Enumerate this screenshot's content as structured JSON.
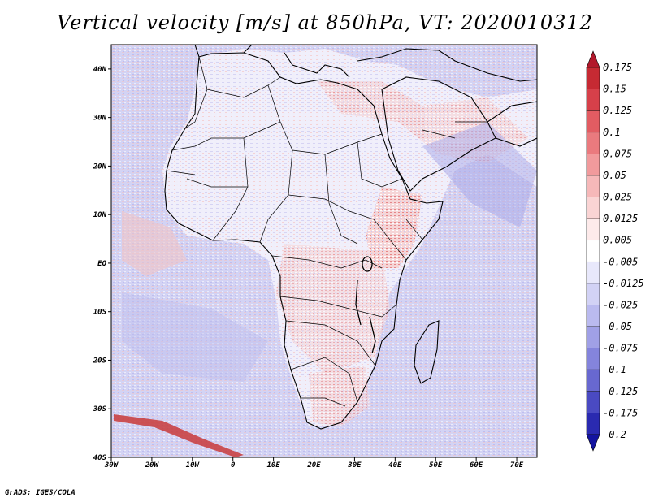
{
  "title": "Vertical velocity [m/s] at 850hPa, VT: 2020010312",
  "footer": "GrADS: IGES/COLA",
  "chart_data": {
    "type": "map",
    "variable": "Vertical velocity",
    "units": "m/s",
    "level": "850hPa",
    "valid_time": "2020010312",
    "lon_range": [
      -30,
      75
    ],
    "lat_range": [
      -40,
      45
    ],
    "lon_ticks": [
      "30W",
      "20W",
      "10W",
      "0",
      "10E",
      "20E",
      "30E",
      "40E",
      "50E",
      "60E",
      "70E"
    ],
    "lat_ticks": [
      "40N",
      "30N",
      "20N",
      "10N",
      "EQ",
      "10S",
      "20S",
      "30S",
      "40S"
    ],
    "colorbar": {
      "labels": [
        "0.175",
        "0.15",
        "0.125",
        "0.1",
        "0.075",
        "0.05",
        "0.025",
        "0.0125",
        "0.005",
        "-0.005",
        "-0.0125",
        "-0.025",
        "-0.05",
        "-0.075",
        "-0.1",
        "-0.125",
        "-0.175",
        "-0.2"
      ],
      "colors": [
        "#b2182b",
        "#c62a33",
        "#d6404a",
        "#e25c62",
        "#ea7a7e",
        "#f19a9c",
        "#f6b8b9",
        "#fad4d4",
        "#fdeaea",
        "#ffffff",
        "#e8e8fb",
        "#d2d2f5",
        "#babaef",
        "#a0a0e6",
        "#8484dc",
        "#6868d0",
        "#4a4ac2",
        "#2a2ab0",
        "#1414a0"
      ]
    }
  }
}
